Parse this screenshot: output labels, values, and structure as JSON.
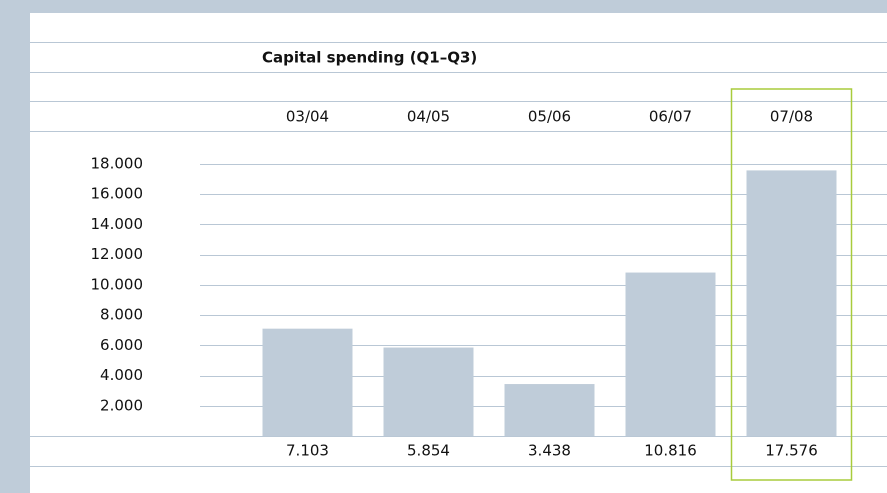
{
  "chart_data": {
    "type": "bar",
    "title": "Capital spending (Q1–Q3)",
    "categories": [
      "03/04",
      "04/05",
      "05/06",
      "06/07",
      "07/08"
    ],
    "values": [
      7103,
      5854,
      3438,
      10816,
      17576
    ],
    "value_labels": [
      "7.103",
      "5.854",
      "3.438",
      "10.816",
      "17.576"
    ],
    "color": "#bfccd9",
    "highlight": 4,
    "highlight_color": "#a8cc3c",
    "ylim": [
      0,
      18000
    ],
    "yticks": [
      {
        "value": 2000,
        "label": "2.000"
      },
      {
        "value": 4000,
        "label": "4.000"
      },
      {
        "value": 6000,
        "label": "6.000"
      },
      {
        "value": 8000,
        "label": "8.000"
      },
      {
        "value": 10000,
        "label": "10.000"
      },
      {
        "value": 12000,
        "label": "12.000"
      },
      {
        "value": 14000,
        "label": "14.000"
      },
      {
        "value": 16000,
        "label": "16.000"
      },
      {
        "value": 18000,
        "label": "18.000"
      }
    ],
    "grid": true
  }
}
